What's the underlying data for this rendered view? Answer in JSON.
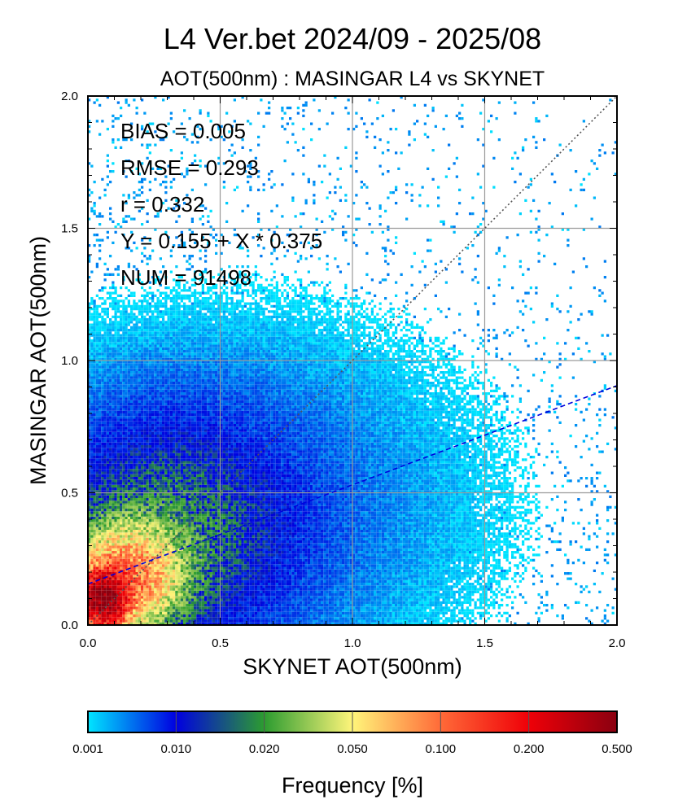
{
  "title": "L4  Ver.bet  2024/09 - 2025/08",
  "subtitle": "AOT(500nm) : MASINGAR L4 vs SKYNET",
  "chart_data": {
    "type": "heatmap",
    "xlabel": "SKYNET AOT(500nm)",
    "ylabel": "MASINGAR AOT(500nm)",
    "xlim": [
      0.0,
      2.0
    ],
    "ylim": [
      0.0,
      2.0
    ],
    "x_ticks": [
      "0.0",
      "0.5",
      "1.0",
      "1.5",
      "2.0"
    ],
    "y_ticks": [
      "0.0",
      "0.5",
      "1.0",
      "1.5",
      "2.0"
    ],
    "grid": true,
    "statistics": [
      "BIAS = 0.005",
      "RMSE = 0.293",
      "r = 0.332",
      "Y = 0.155 + X * 0.375",
      "NUM = 91498"
    ],
    "one_to_one_line": {
      "intercept": 0.0,
      "slope": 1.0,
      "style": "dotted",
      "color": "#555555"
    },
    "regression_line": {
      "intercept": 0.155,
      "slope": 0.375,
      "style": "dashed",
      "color": "#0000dd"
    },
    "colorbar": {
      "title": "Frequency [%]",
      "tick_labels": [
        "0.001",
        "0.010",
        "0.020",
        "0.050",
        "0.100",
        "0.200",
        "0.500"
      ],
      "bins": [
        {
          "from": 0.001,
          "to": 0.01,
          "colors": [
            "#00e5ff",
            "#0000e0"
          ]
        },
        {
          "from": 0.01,
          "to": 0.02,
          "colors": [
            "#0000e0",
            "#2c9c30"
          ]
        },
        {
          "from": 0.02,
          "to": 0.05,
          "colors": [
            "#2c9c30",
            "#fff57a"
          ]
        },
        {
          "from": 0.05,
          "to": 0.1,
          "colors": [
            "#fff57a",
            "#ff6a38"
          ]
        },
        {
          "from": 0.1,
          "to": 0.2,
          "colors": [
            "#ff6a38",
            "#ef0008"
          ]
        },
        {
          "from": 0.2,
          "to": 0.5,
          "colors": [
            "#ef0008",
            "#8a0010"
          ]
        }
      ]
    },
    "density_clusters": [
      {
        "x": 0.06,
        "y": 0.1,
        "sx": 0.05,
        "sy": 0.06,
        "peak": 0.45
      },
      {
        "x": 0.15,
        "y": 0.18,
        "sx": 0.12,
        "sy": 0.12,
        "peak": 0.09
      },
      {
        "x": 0.3,
        "y": 0.35,
        "sx": 0.3,
        "sy": 0.28,
        "peak": 0.014
      },
      {
        "x": 0.55,
        "y": 0.45,
        "sx": 0.6,
        "sy": 0.45,
        "peak": 0.004
      }
    ]
  }
}
